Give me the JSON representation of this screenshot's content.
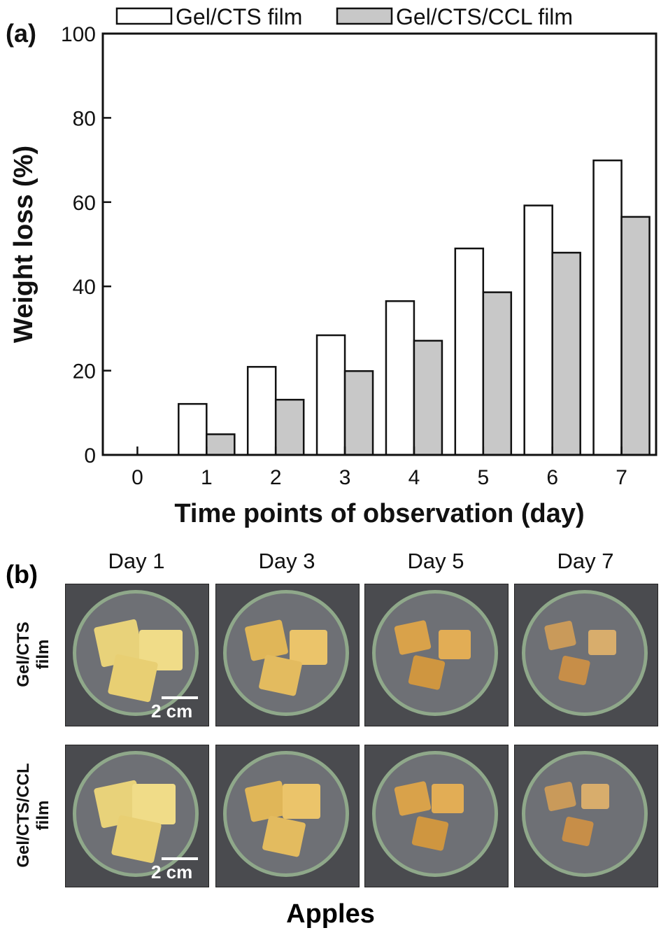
{
  "chart_data": {
    "type": "bar",
    "panel_label": "(a)",
    "categories": [
      "0",
      "1",
      "2",
      "3",
      "4",
      "5",
      "6",
      "7"
    ],
    "series": [
      {
        "name": "Gel/CTS film",
        "color": "#ffffff",
        "values": [
          0,
          12.1,
          20.9,
          28.4,
          36.5,
          49.0,
          59.2,
          69.9
        ]
      },
      {
        "name": "Gel/CTS/CCL film",
        "color": "#c8c8c8",
        "values": [
          0,
          4.9,
          13.1,
          19.9,
          27.1,
          38.6,
          48.0,
          56.5
        ]
      }
    ],
    "xlabel": "Time points of observation (day)",
    "ylabel": "Weight loss (%)",
    "ylim": [
      0,
      100
    ],
    "yticks": [
      0,
      20,
      40,
      60,
      80,
      100
    ],
    "legend": "top",
    "grid": false
  },
  "panel_b": {
    "label": "(b)",
    "columns": [
      "Day 1",
      "Day 3",
      "Day 5",
      "Day 7"
    ],
    "rows": [
      {
        "label_line1": "Gel/CTS",
        "label_line2": "film"
      },
      {
        "label_line1": "Gel/CTS/CCL",
        "label_line2": "film"
      }
    ],
    "scale_label": "2 cm",
    "title": "Apples"
  }
}
